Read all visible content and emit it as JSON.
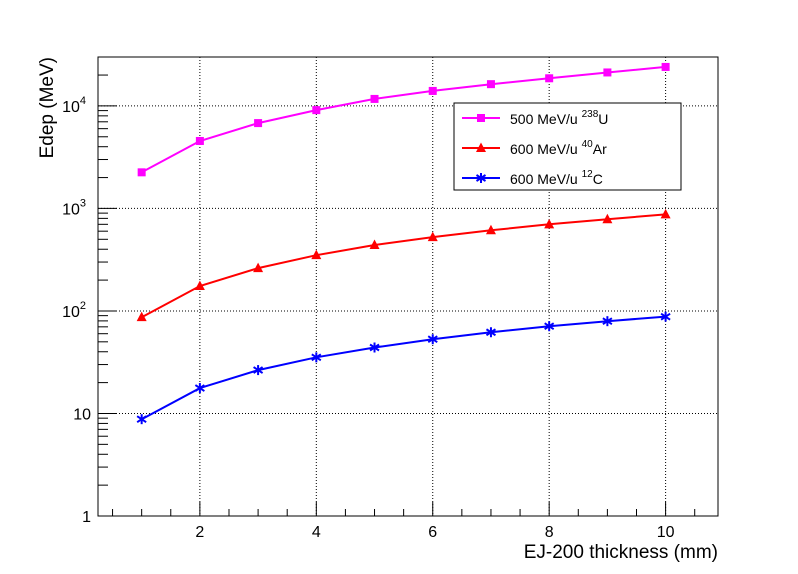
{
  "chart_data": {
    "type": "line",
    "xlabel": "EJ-200 thickness (mm)",
    "ylabel": "Edep (MeV)",
    "xlim": [
      0.25,
      10.9
    ],
    "ylim": [
      1,
      30000
    ],
    "y_scale": "log",
    "grid": true,
    "legend_position": "top-right",
    "x_ticks": [
      2,
      4,
      6,
      8,
      10
    ],
    "y_ticks": [
      {
        "value": 1,
        "base": "1",
        "exp": ""
      },
      {
        "value": 10,
        "base": "10",
        "exp": ""
      },
      {
        "value": 100,
        "base": "10",
        "exp": "2"
      },
      {
        "value": 1000,
        "base": "10",
        "exp": "3"
      },
      {
        "value": 10000,
        "base": "10",
        "exp": "4"
      }
    ],
    "x": [
      1,
      2,
      3,
      4,
      5,
      6,
      7,
      8,
      9,
      10
    ],
    "series": [
      {
        "name_prefix": "500 MeV/u ",
        "name_sup": "238",
        "name_suffix": "U",
        "color": "#ff00ff",
        "marker": "square",
        "values": [
          2250,
          4550,
          6800,
          9100,
          11700,
          14000,
          16300,
          18600,
          21200,
          24000
        ]
      },
      {
        "name_prefix": "600 MeV/u ",
        "name_sup": "40",
        "name_suffix": "Ar",
        "color": "#ff0000",
        "marker": "triangle",
        "values": [
          87,
          175,
          262,
          350,
          440,
          525,
          612,
          700,
          785,
          875
        ]
      },
      {
        "name_prefix": "600 MeV/u ",
        "name_sup": "12",
        "name_suffix": "C",
        "color": "#0000ff",
        "marker": "star",
        "values": [
          8.8,
          17.7,
          26.5,
          35.3,
          44,
          53,
          62,
          71,
          79.5,
          88
        ]
      }
    ]
  }
}
